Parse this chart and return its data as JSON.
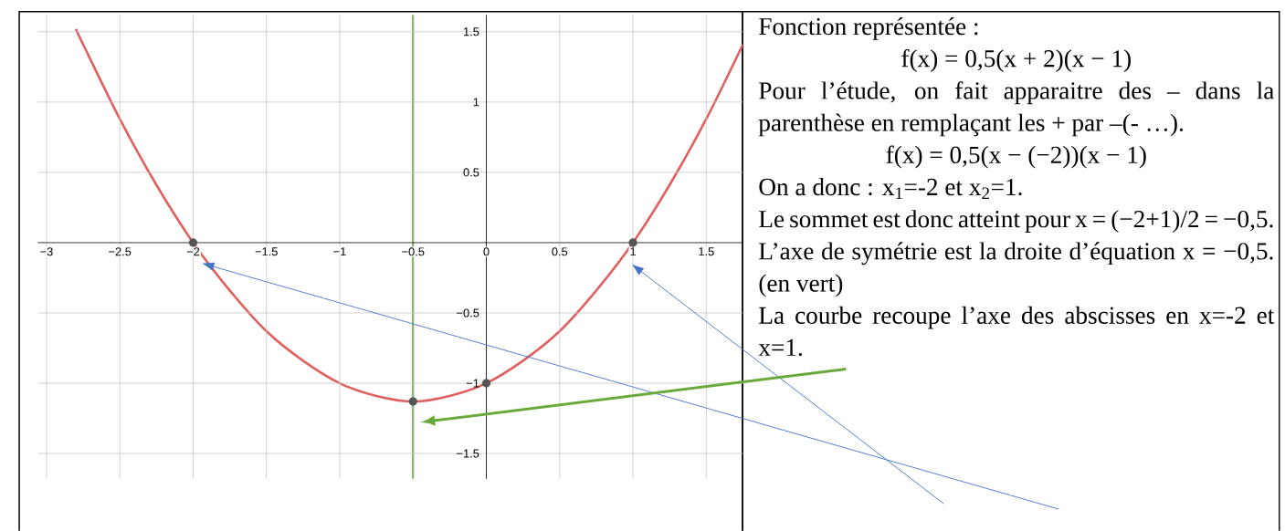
{
  "chart_data": {
    "type": "line",
    "series": [
      {
        "type": "line",
        "color": "#e06060",
        "marker": "none",
        "x": [
          -2.8,
          -2.75,
          -2.5,
          -2.25,
          -2,
          -1.75,
          -1.5,
          -1.25,
          -1,
          -0.75,
          -0.5,
          -0.25,
          0,
          0.25,
          0.5,
          0.75,
          1,
          1.25,
          1.5,
          1.75
        ],
        "values": [
          1.52,
          1.41,
          0.88,
          0.41,
          0,
          -0.34,
          -0.63,
          -0.84,
          -1,
          -1.09,
          -1.13,
          -1.09,
          -1,
          -0.84,
          -0.63,
          -0.34,
          0,
          0.41,
          0.88,
          1.41
        ]
      },
      {
        "type": "scatter",
        "color": "#555555",
        "marker": "circle",
        "x": [
          -2,
          1,
          -0.5,
          0
        ],
        "values": [
          0,
          0,
          -1.13,
          -1
        ]
      }
    ],
    "xlim": [
      -3.06,
      1.75
    ],
    "ylim": [
      -1.68,
      1.62
    ],
    "xticks": [
      {
        "value": -3,
        "label": "−3"
      },
      {
        "value": -2.5,
        "label": "−2.5"
      },
      {
        "value": -2,
        "label": "−2"
      },
      {
        "value": -1.5,
        "label": "−1.5"
      },
      {
        "value": -1,
        "label": "−1"
      },
      {
        "value": -0.5,
        "label": "−0.5"
      },
      0,
      0.5,
      1,
      1.5
    ],
    "yticks": [
      {
        "value": -1.5,
        "label": "−1.5"
      },
      {
        "value": -1,
        "label": "−1"
      },
      {
        "value": -0.5,
        "label": "−0.5"
      },
      0.5,
      1,
      1.5
    ],
    "grid": true,
    "ref_lines": [
      {
        "axis": "x",
        "value": -0.5,
        "color": "#5aa02c"
      }
    ],
    "annotations": [
      "Fonction représentée :",
      "f(x) = 0,5(x + 2)(x − 1)",
      "Pour l’étude, on fait apparaitre des – dans la parenthèse en remplaçant les + par –(- …).",
      "f(x) = 0,5(x − (−2))(x − 1)",
      "On a donc : x$_{1}$=-2 et x$_{2}$=1.",
      "Le sommet est donc atteint pour x = (−2+1)/2 = −0,5.",
      "L’axe de symétrie est la droite d’équation x = −0,5. (en vert)",
      "La courbe recoupe l’axe des abscisses en x=-2 et x=1."
    ]
  }
}
